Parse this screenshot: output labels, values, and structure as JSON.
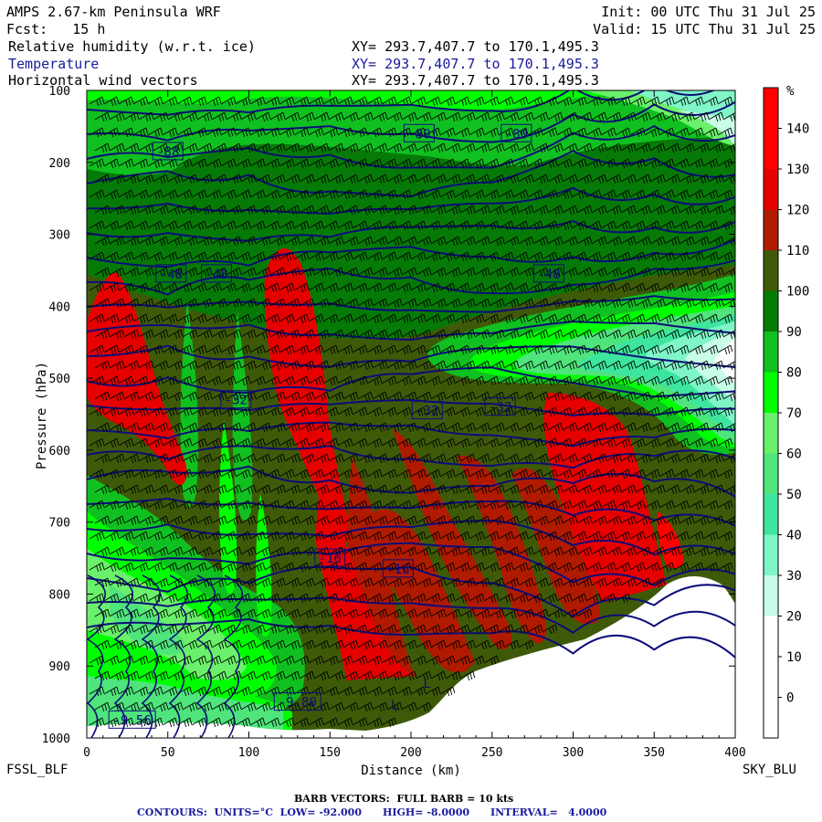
{
  "header": {
    "model": "AMPS 2.67-km Peninsula WRF",
    "init": "Init: 00 UTC Thu 31 Jul 25",
    "fcst": "Fcst:   15 h",
    "valid": "Valid: 15 UTC Thu 31 Jul 25",
    "fields": [
      {
        "label": "Relative humidity (w.r.t. ice)",
        "xy": "XY= 293.7,407.7 to 170.1,495.3",
        "color": "#000000"
      },
      {
        "label": "Temperature",
        "xy": "XY= 293.7,407.7 to 170.1,495.3",
        "color": "#1a1a9c"
      },
      {
        "label": "Horizontal wind vectors",
        "xy": "XY= 293.7,407.7 to 170.1,495.3",
        "color": "#000000"
      }
    ]
  },
  "chart_data": {
    "type": "heatmap",
    "xlabel": "Distance (km)",
    "ylabel": "Pressure (hPa)",
    "xlim": [
      0,
      400
    ],
    "ylim": [
      1000,
      100
    ],
    "x_ticks": [
      0,
      50,
      100,
      150,
      200,
      250,
      300,
      350,
      400
    ],
    "y_ticks": [
      100,
      200,
      300,
      400,
      500,
      600,
      700,
      800,
      900,
      1000
    ],
    "left_station": "FSSL_BLF",
    "right_station": "SKY_BLU",
    "colorbar": {
      "unit": "%",
      "levels": [
        0,
        10,
        20,
        30,
        40,
        50,
        60,
        70,
        80,
        90,
        100,
        110,
        120,
        130,
        140
      ],
      "colors": [
        "#ffffff",
        "#ffffff",
        "#ffffff",
        "#c8fde8",
        "#7ff5c8",
        "#3ee59e",
        "#4fe47c",
        "#6af06a",
        "#00ff00",
        "#10c020",
        "#067a06",
        "#3e5a08",
        "#b01a00",
        "#e60000",
        "#ff0000",
        "#ff0000"
      ]
    },
    "temperature_labels": [
      {
        "text": "-80",
        "x": 205,
        "p": 160
      },
      {
        "text": "-80",
        "x": 265,
        "p": 160
      },
      {
        "text": "-88",
        "x": 50,
        "p": 185
      },
      {
        "text": "-48",
        "x": 52,
        "p": 355
      },
      {
        "text": "-48",
        "x": 80,
        "p": 355
      },
      {
        "text": "-48",
        "x": 285,
        "p": 355
      },
      {
        "text": "-32",
        "x": 92,
        "p": 530
      },
      {
        "text": "-32",
        "x": 210,
        "p": 545
      },
      {
        "text": "-32",
        "x": 255,
        "p": 540
      },
      {
        "text": "-16",
        "x": 150,
        "p": 750
      },
      {
        "text": "-16",
        "x": 192,
        "p": 765
      },
      {
        "text": "-9.56",
        "x": 28,
        "p": 975
      },
      {
        "text": "-9.80",
        "x": 130,
        "p": 950
      }
    ],
    "lows": [
      {
        "text": "L",
        "x": 190,
        "p": 960
      },
      {
        "text": "L",
        "x": 210,
        "p": 930
      }
    ]
  },
  "footer": {
    "barb_note": "BARB VECTORS:  FULL BARB = 10 kts",
    "contours": "CONTOURS:  UNITS=°C  LOW= -92.000      HIGH= -8.0000      INTERVAL=   4.0000"
  },
  "colors": {
    "contour": "#0c0c7a",
    "text_blue": "#1a1a9c"
  }
}
